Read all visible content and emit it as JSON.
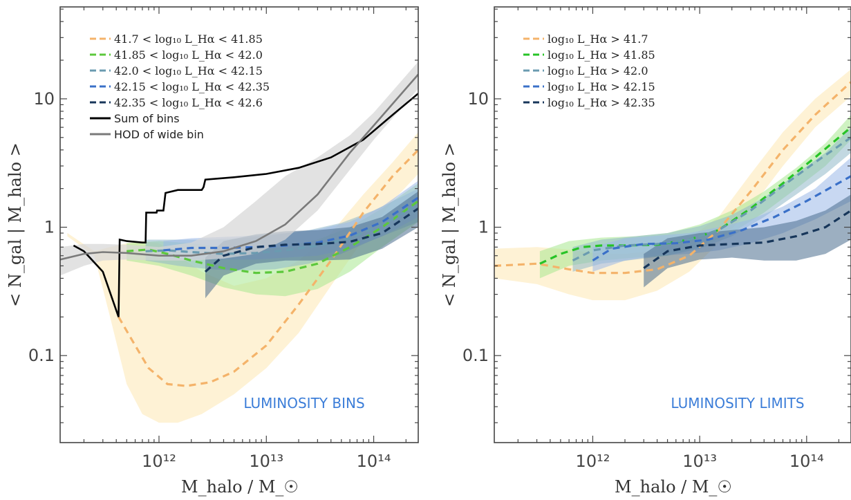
{
  "chart_data": [
    {
      "type": "line",
      "panel": "left",
      "title": "",
      "xlabel": "M_halo / M_☉",
      "ylabel": "< N_gal | M_halo >",
      "xscale": "log",
      "yscale": "log",
      "xlim": [
        120000000000.0,
        260000000000000.0
      ],
      "ylim": [
        0.021,
        52
      ],
      "x_ticks": [
        {
          "v": 1000000000000.0,
          "label": "10¹²"
        },
        {
          "v": 10000000000000.0,
          "label": "10¹³"
        },
        {
          "v": 100000000000000.0,
          "label": "10¹⁴"
        }
      ],
      "y_ticks": [
        {
          "v": 0.1,
          "label": "0.1"
        },
        {
          "v": 1,
          "label": "1"
        },
        {
          "v": 10,
          "label": "10"
        }
      ],
      "annotation": "LUMINOSITY BINS",
      "legend_position": "top-left",
      "series": [
        {
          "name": "41.7 < log₁₀ L_Hα < 41.85",
          "color": "#f4b36a",
          "style": "dashed",
          "band_color": "#fde7b3",
          "x": [
            420000000000.0,
            600000000000.0,
            800000000000.0,
            1200000000000.0,
            1800000000000.0,
            3000000000000.0,
            5000000000000.0,
            10000000000000.0,
            20000000000000.0,
            40000000000000.0,
            80000000000000.0,
            150000000000000.0,
            260000000000000.0
          ],
          "y": [
            0.2,
            0.12,
            0.08,
            0.06,
            0.058,
            0.062,
            0.075,
            0.12,
            0.25,
            0.55,
            1.3,
            2.5,
            4.0
          ],
          "band_x": [
            140000000000.0,
            250000000000.0,
            350000000000.0,
            500000000000.0,
            700000000000.0,
            1000000000000.0,
            1500000000000.0,
            2500000000000.0,
            5000000000000.0,
            10000000000000.0,
            20000000000000.0,
            40000000000000.0,
            80000000000000.0,
            150000000000000.0,
            260000000000000.0
          ],
          "band_lo": [
            0.85,
            0.6,
            0.2,
            0.06,
            0.035,
            0.03,
            0.03,
            0.035,
            0.05,
            0.08,
            0.15,
            0.35,
            0.8,
            1.6,
            2.6
          ],
          "band_hi": [
            0.9,
            0.65,
            0.7,
            0.75,
            0.78,
            0.75,
            0.6,
            0.45,
            0.35,
            0.4,
            0.55,
            0.9,
            1.8,
            3.2,
            5.5
          ]
        },
        {
          "name": "41.85 < log₁₀ L_Hα < 42.0",
          "color": "#5cc83c",
          "style": "dashed",
          "band_color": "#a8e890",
          "x": [
            500000000000.0,
            800000000000.0,
            1200000000000.0,
            2000000000000.0,
            4000000000000.0,
            8000000000000.0,
            15000000000000.0,
            30000000000000.0,
            60000000000000.0,
            120000000000000.0,
            260000000000000.0
          ],
          "y": [
            0.65,
            0.67,
            0.62,
            0.55,
            0.48,
            0.44,
            0.45,
            0.52,
            0.7,
            1.0,
            1.6
          ],
          "band_x": [
            500000000000.0,
            1000000000000.0,
            2000000000000.0,
            4000000000000.0,
            8000000000000.0,
            15000000000000.0,
            30000000000000.0,
            60000000000000.0,
            120000000000000.0,
            260000000000000.0
          ],
          "band_lo": [
            0.55,
            0.5,
            0.42,
            0.34,
            0.3,
            0.29,
            0.33,
            0.45,
            0.7,
            1.1
          ],
          "band_hi": [
            0.75,
            0.78,
            0.75,
            0.7,
            0.68,
            0.7,
            0.8,
            1.0,
            1.4,
            2.2
          ]
        },
        {
          "name": "42.0 < log₁₀ L_Hα < 42.15",
          "color": "#6a9bb0",
          "style": "dashed",
          "band_color": "#8fb8c8",
          "x": [
            750000000000.0,
            1200000000000.0,
            2000000000000.0,
            4000000000000.0,
            8000000000000.0,
            15000000000000.0,
            30000000000000.0,
            60000000000000.0,
            120000000000000.0,
            260000000000000.0
          ],
          "y": [
            0.65,
            0.66,
            0.64,
            0.62,
            0.63,
            0.66,
            0.72,
            0.82,
            1.05,
            1.5
          ],
          "band_x": [
            750000000000.0,
            1500000000000.0,
            3000000000000.0,
            6000000000000.0,
            12000000000000.0,
            25000000000000.0,
            50000000000000.0,
            100000000000000.0,
            260000000000000.0
          ],
          "band_lo": [
            0.55,
            0.5,
            0.47,
            0.46,
            0.47,
            0.52,
            0.62,
            0.8,
            1.1
          ],
          "band_hi": [
            0.8,
            0.8,
            0.8,
            0.82,
            0.87,
            0.95,
            1.08,
            1.35,
            2.0
          ]
        },
        {
          "name": "42.15 < log₁₀ L_Hα < 42.35",
          "color": "#3a70c8",
          "style": "dashed",
          "band_color": "#9bb8e8",
          "x": [
            1100000000000.0,
            2000000000000.0,
            4000000000000.0,
            8000000000000.0,
            15000000000000.0,
            30000000000000.0,
            60000000000000.0,
            120000000000000.0,
            260000000000000.0
          ],
          "y": [
            0.66,
            0.69,
            0.69,
            0.7,
            0.72,
            0.76,
            0.86,
            1.1,
            1.7
          ],
          "band_x": [
            1100000000000.0,
            2000000000000.0,
            4000000000000.0,
            8000000000000.0,
            15000000000000.0,
            30000000000000.0,
            60000000000000.0,
            120000000000000.0,
            260000000000000.0
          ],
          "band_lo": [
            0.56,
            0.56,
            0.56,
            0.56,
            0.58,
            0.6,
            0.68,
            0.85,
            1.2
          ],
          "band_hi": [
            0.78,
            0.82,
            0.84,
            0.86,
            0.9,
            0.96,
            1.1,
            1.45,
            2.3
          ]
        },
        {
          "name": "42.35 < log₁₀ L_Hα < 42.6",
          "color": "#17365a",
          "style": "dashed",
          "band_color": "#4a6d8e",
          "x": [
            2700000000000.0,
            4000000000000.0,
            8000000000000.0,
            15000000000000.0,
            30000000000000.0,
            60000000000000.0,
            120000000000000.0,
            260000000000000.0
          ],
          "y": [
            0.45,
            0.6,
            0.7,
            0.73,
            0.74,
            0.77,
            0.9,
            1.4
          ],
          "band_x": [
            2700000000000.0,
            4000000000000.0,
            8000000000000.0,
            15000000000000.0,
            30000000000000.0,
            60000000000000.0,
            120000000000000.0,
            260000000000000.0
          ],
          "band_lo": [
            0.28,
            0.42,
            0.52,
            0.55,
            0.55,
            0.56,
            0.68,
            1.0
          ],
          "band_hi": [
            0.58,
            0.78,
            0.88,
            0.93,
            0.95,
            1.0,
            1.2,
            1.9
          ]
        },
        {
          "name": "Sum of bins",
          "color": "#000000",
          "style": "solid",
          "x": [
            160000000000.0,
            200000000000.0,
            300000000000.0,
            420000000000.0,
            430000000000.0,
            500000000000.0,
            700000000000.0,
            750000000000.0,
            760000000000.0,
            950000000000.0,
            960000000000.0,
            1100000000000.0,
            1150000000000.0,
            1500000000000.0,
            2500000000000.0,
            2600000000000.0,
            2700000000000.0,
            5000000000000.0,
            10000000000000.0,
            20000000000000.0,
            40000000000000.0,
            80000000000000.0,
            150000000000000.0,
            260000000000000.0
          ],
          "y": [
            0.72,
            0.65,
            0.45,
            0.2,
            0.8,
            0.78,
            0.76,
            0.76,
            1.3,
            1.3,
            1.35,
            1.35,
            1.85,
            1.95,
            1.95,
            2.05,
            2.35,
            2.45,
            2.6,
            2.9,
            3.5,
            4.8,
            7.5,
            11.0
          ]
        },
        {
          "name": "HOD of wide bin",
          "color": "#7a7a7a",
          "style": "solid",
          "band_color": "#d6d6d6",
          "x": [
            120000000000.0,
            200000000000.0,
            300000000000.0,
            500000000000.0,
            1000000000000.0,
            2000000000000.0,
            4000000000000.0,
            8000000000000.0,
            15000000000000.0,
            30000000000000.0,
            60000000000000.0,
            100000000000000.0,
            260000000000000.0
          ],
          "y": [
            0.56,
            0.62,
            0.64,
            0.63,
            0.6,
            0.6,
            0.65,
            0.78,
            1.05,
            1.8,
            3.8,
            6.2,
            15.5
          ],
          "band_x": [
            120000000000.0,
            200000000000.0,
            300000000000.0,
            500000000000.0,
            1000000000000.0,
            2000000000000.0,
            4000000000000.0,
            8000000000000.0,
            15000000000000.0,
            30000000000000.0,
            60000000000000.0,
            100000000000000.0,
            260000000000000.0
          ],
          "band_lo": [
            0.42,
            0.5,
            0.55,
            0.56,
            0.55,
            0.55,
            0.57,
            0.62,
            0.8,
            1.35,
            2.8,
            4.8,
            12.0
          ],
          "band_hi": [
            0.7,
            0.74,
            0.74,
            0.73,
            0.7,
            0.76,
            1.0,
            1.6,
            2.5,
            3.5,
            5.2,
            7.8,
            19.5
          ]
        }
      ]
    },
    {
      "type": "line",
      "panel": "right",
      "title": "",
      "xlabel": "M_halo / M_☉",
      "ylabel": "< N_gal | M_halo >",
      "xscale": "log",
      "yscale": "log",
      "xlim": [
        120000000000.0,
        260000000000000.0
      ],
      "ylim": [
        0.021,
        52
      ],
      "x_ticks": [
        {
          "v": 1000000000000.0,
          "label": "10¹²"
        },
        {
          "v": 10000000000000.0,
          "label": "10¹³"
        },
        {
          "v": 100000000000000.0,
          "label": "10¹⁴"
        }
      ],
      "y_ticks": [
        {
          "v": 0.1,
          "label": "0.1"
        },
        {
          "v": 1,
          "label": "1"
        },
        {
          "v": 10,
          "label": "10"
        }
      ],
      "annotation": "LUMINOSITY LIMITS",
      "legend_position": "top-left",
      "series": [
        {
          "name": "log₁₀ L_Hα > 41.7",
          "color": "#f4b36a",
          "style": "dashed",
          "band_color": "#fde7b3",
          "x": [
            120000000000.0,
            300000000000.0,
            600000000000.0,
            1000000000000.0,
            2000000000000.0,
            4000000000000.0,
            8000000000000.0,
            15000000000000.0,
            30000000000000.0,
            60000000000000.0,
            120000000000000.0,
            260000000000000.0
          ],
          "y": [
            0.5,
            0.52,
            0.47,
            0.44,
            0.44,
            0.47,
            0.6,
            0.95,
            1.9,
            4.0,
            7.5,
            13.5
          ],
          "band_x": [
            120000000000.0,
            300000000000.0,
            600000000000.0,
            1000000000000.0,
            2000000000000.0,
            4000000000000.0,
            8000000000000.0,
            15000000000000.0,
            30000000000000.0,
            60000000000000.0,
            120000000000000.0,
            260000000000000.0
          ],
          "band_lo": [
            0.4,
            0.36,
            0.3,
            0.27,
            0.27,
            0.32,
            0.45,
            0.75,
            1.4,
            3.0,
            6.0,
            10.5
          ],
          "band_hi": [
            0.68,
            0.7,
            0.67,
            0.63,
            0.62,
            0.66,
            0.82,
            1.2,
            2.6,
            5.5,
            10.0,
            17.0
          ]
        },
        {
          "name": "log₁₀ L_Hα > 41.85",
          "color": "#27c327",
          "style": "dashed",
          "band_color": "#a8e890",
          "x": [
            320000000000.0,
            500000000000.0,
            800000000000.0,
            1200000000000.0,
            2000000000000.0,
            4000000000000.0,
            8000000000000.0,
            15000000000000.0,
            30000000000000.0,
            60000000000000.0,
            120000000000000.0,
            260000000000000.0
          ],
          "y": [
            0.52,
            0.62,
            0.7,
            0.72,
            0.72,
            0.73,
            0.8,
            0.95,
            1.4,
            2.2,
            3.5,
            6.0
          ],
          "band_x": [
            320000000000.0,
            600000000000.0,
            1200000000000.0,
            2500000000000.0,
            5000000000000.0,
            10000000000000.0,
            20000000000000.0,
            40000000000000.0,
            80000000000000.0,
            150000000000000.0,
            260000000000000.0
          ],
          "band_lo": [
            0.4,
            0.5,
            0.55,
            0.58,
            0.6,
            0.7,
            0.9,
            1.3,
            2.0,
            3.0,
            4.8
          ],
          "band_hi": [
            0.65,
            0.78,
            0.83,
            0.85,
            0.9,
            1.05,
            1.35,
            1.9,
            2.9,
            4.5,
            7.5
          ]
        },
        {
          "name": "log₁₀ L_Hα > 42.0",
          "color": "#6a9bb0",
          "style": "dashed",
          "band_color": "#8fb8c8",
          "x": [
            650000000000.0,
            1000000000000.0,
            2000000000000.0,
            4000000000000.0,
            8000000000000.0,
            15000000000000.0,
            30000000000000.0,
            60000000000000.0,
            120000000000000.0,
            260000000000000.0
          ],
          "y": [
            0.55,
            0.66,
            0.72,
            0.74,
            0.8,
            0.95,
            1.35,
            2.1,
            3.2,
            5.0
          ],
          "band_x": [
            650000000000.0,
            1200000000000.0,
            2500000000000.0,
            5000000000000.0,
            10000000000000.0,
            20000000000000.0,
            40000000000000.0,
            80000000000000.0,
            150000000000000.0,
            260000000000000.0
          ],
          "band_lo": [
            0.45,
            0.52,
            0.56,
            0.6,
            0.68,
            0.85,
            1.2,
            1.8,
            2.6,
            3.8
          ],
          "band_hi": [
            0.7,
            0.8,
            0.85,
            0.9,
            1.02,
            1.25,
            1.7,
            2.6,
            3.8,
            6.0
          ]
        },
        {
          "name": "log₁₀ L_Hα > 42.15",
          "color": "#3a70c8",
          "style": "dashed",
          "band_color": "#9bb8e8",
          "x": [
            1000000000000.0,
            1500000000000.0,
            3000000000000.0,
            6000000000000.0,
            12000000000000.0,
            25000000000000.0,
            50000000000000.0,
            100000000000000.0,
            260000000000000.0
          ],
          "y": [
            0.55,
            0.68,
            0.74,
            0.75,
            0.8,
            0.95,
            1.2,
            1.6,
            2.5
          ],
          "band_x": [
            1000000000000.0,
            2000000000000.0,
            4000000000000.0,
            8000000000000.0,
            15000000000000.0,
            30000000000000.0,
            60000000000000.0,
            120000000000000.0,
            260000000000000.0
          ],
          "band_lo": [
            0.45,
            0.55,
            0.6,
            0.62,
            0.66,
            0.75,
            0.9,
            1.15,
            1.6
          ],
          "band_hi": [
            0.7,
            0.82,
            0.86,
            0.9,
            1.0,
            1.15,
            1.45,
            2.0,
            3.5
          ]
        },
        {
          "name": "log₁₀ L_Hα > 42.35",
          "color": "#17365a",
          "style": "dashed",
          "band_color": "#4a6d8e",
          "x": [
            3000000000000.0,
            5000000000000.0,
            10000000000000.0,
            20000000000000.0,
            40000000000000.0,
            80000000000000.0,
            150000000000000.0,
            260000000000000.0
          ],
          "y": [
            0.48,
            0.65,
            0.72,
            0.74,
            0.76,
            0.85,
            1.0,
            1.35
          ],
          "band_x": [
            3000000000000.0,
            5000000000000.0,
            10000000000000.0,
            20000000000000.0,
            40000000000000.0,
            80000000000000.0,
            150000000000000.0,
            260000000000000.0
          ],
          "band_lo": [
            0.34,
            0.48,
            0.56,
            0.58,
            0.55,
            0.55,
            0.62,
            0.8
          ],
          "band_hi": [
            0.62,
            0.82,
            0.9,
            0.95,
            1.0,
            1.12,
            1.35,
            1.8
          ]
        }
      ]
    }
  ]
}
